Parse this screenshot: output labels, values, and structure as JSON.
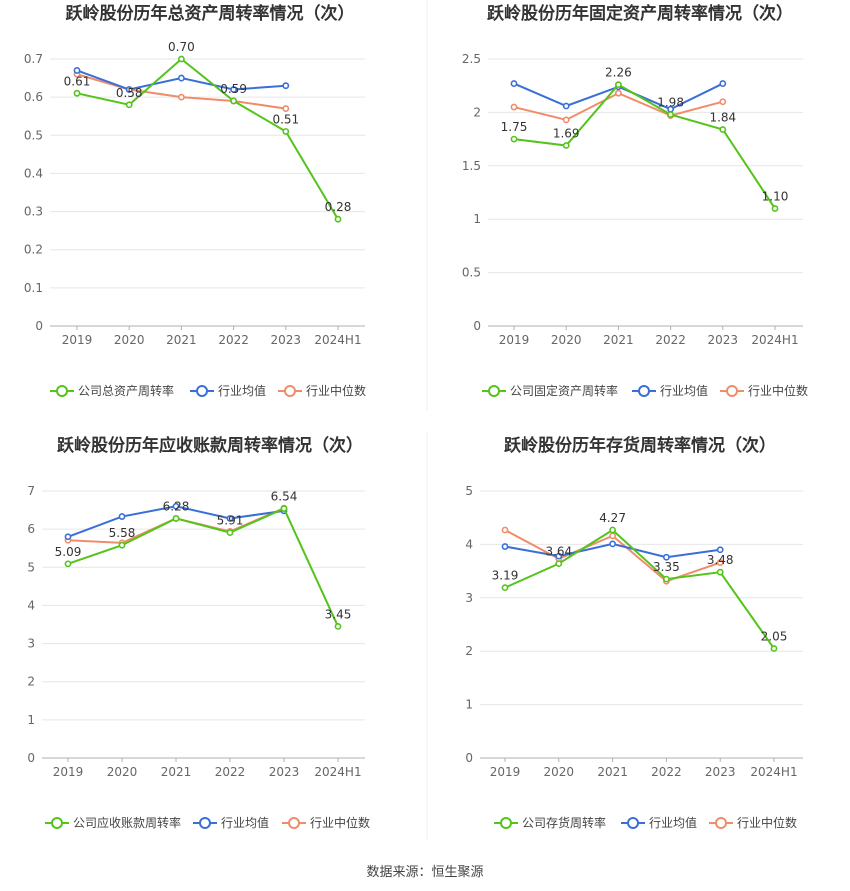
{
  "source": "数据来源：恒生聚源",
  "colors": {
    "company": "#52c41a",
    "avg": "#3a6fd8",
    "median": "#f08c6a",
    "grid": "#e6e6e6",
    "axis": "#b0b0b0"
  },
  "chart_data": [
    {
      "type": "line",
      "title": "跃岭股份历年总资产周转率情况（次）",
      "categories": [
        "2019",
        "2020",
        "2021",
        "2022",
        "2023",
        "2024H1"
      ],
      "yticks": [
        "0",
        "0.1",
        "0.2",
        "0.3",
        "0.4",
        "0.5",
        "0.6",
        "0.7"
      ],
      "ylim": [
        0,
        0.7
      ],
      "series": [
        {
          "name": "公司总资产周转率",
          "values": [
            0.61,
            0.58,
            0.7,
            0.59,
            0.51,
            0.28
          ],
          "labels": [
            "0.61",
            "0.58",
            "0.70",
            "0.59",
            "0.51",
            "0.28"
          ]
        },
        {
          "name": "行业均值",
          "values": [
            0.67,
            0.62,
            0.65,
            0.62,
            0.63,
            null
          ]
        },
        {
          "name": "行业中位数",
          "values": [
            0.66,
            0.62,
            0.6,
            0.59,
            0.57,
            null
          ]
        }
      ]
    },
    {
      "type": "line",
      "title": "跃岭股份历年固定资产周转率情况（次）",
      "categories": [
        "2019",
        "2020",
        "2021",
        "2022",
        "2023",
        "2024H1"
      ],
      "yticks": [
        "0",
        "0.5",
        "1",
        "1.5",
        "2",
        "2.5"
      ],
      "ylim": [
        0,
        2.5
      ],
      "series": [
        {
          "name": "公司固定资产周转率",
          "values": [
            1.75,
            1.69,
            2.26,
            1.98,
            1.84,
            1.1
          ],
          "labels": [
            "1.75",
            "1.69",
            "2.26",
            "1.98",
            "1.84",
            "1.10"
          ]
        },
        {
          "name": "行业均值",
          "values": [
            2.27,
            2.06,
            2.24,
            2.03,
            2.27,
            null
          ]
        },
        {
          "name": "行业中位数",
          "values": [
            2.05,
            1.93,
            2.18,
            1.97,
            2.1,
            null
          ]
        }
      ]
    },
    {
      "type": "line",
      "title": "跃岭股份历年应收账款周转率情况（次）",
      "categories": [
        "2019",
        "2020",
        "2021",
        "2022",
        "2023",
        "2024H1"
      ],
      "yticks": [
        "0",
        "1",
        "2",
        "3",
        "4",
        "5",
        "6",
        "7"
      ],
      "ylim": [
        0,
        7
      ],
      "series": [
        {
          "name": "公司应收账款周转率",
          "values": [
            5.09,
            5.58,
            6.28,
            5.91,
            6.54,
            3.45
          ],
          "labels": [
            "5.09",
            "5.58",
            "6.28",
            "5.91",
            "6.54",
            "3.45"
          ]
        },
        {
          "name": "行业均值",
          "values": [
            5.8,
            6.33,
            6.6,
            6.28,
            6.48,
            null
          ]
        },
        {
          "name": "行业中位数",
          "values": [
            5.71,
            5.64,
            6.28,
            5.94,
            6.55,
            null
          ]
        }
      ]
    },
    {
      "type": "line",
      "title": "跃岭股份历年存货周转率情况（次）",
      "categories": [
        "2019",
        "2020",
        "2021",
        "2022",
        "2023",
        "2024H1"
      ],
      "yticks": [
        "0",
        "1",
        "2",
        "3",
        "4",
        "5"
      ],
      "ylim": [
        0,
        5
      ],
      "series": [
        {
          "name": "公司存货周转率",
          "values": [
            3.19,
            3.64,
            4.27,
            3.35,
            3.48,
            2.05
          ],
          "labels": [
            "3.19",
            "3.64",
            "4.27",
            "3.35",
            "3.48",
            "2.05"
          ]
        },
        {
          "name": "行业均值",
          "values": [
            3.96,
            3.78,
            4.01,
            3.76,
            3.9,
            null
          ]
        },
        {
          "name": "行业中位数",
          "values": [
            4.27,
            3.73,
            4.16,
            3.31,
            3.66,
            null
          ]
        }
      ]
    }
  ]
}
